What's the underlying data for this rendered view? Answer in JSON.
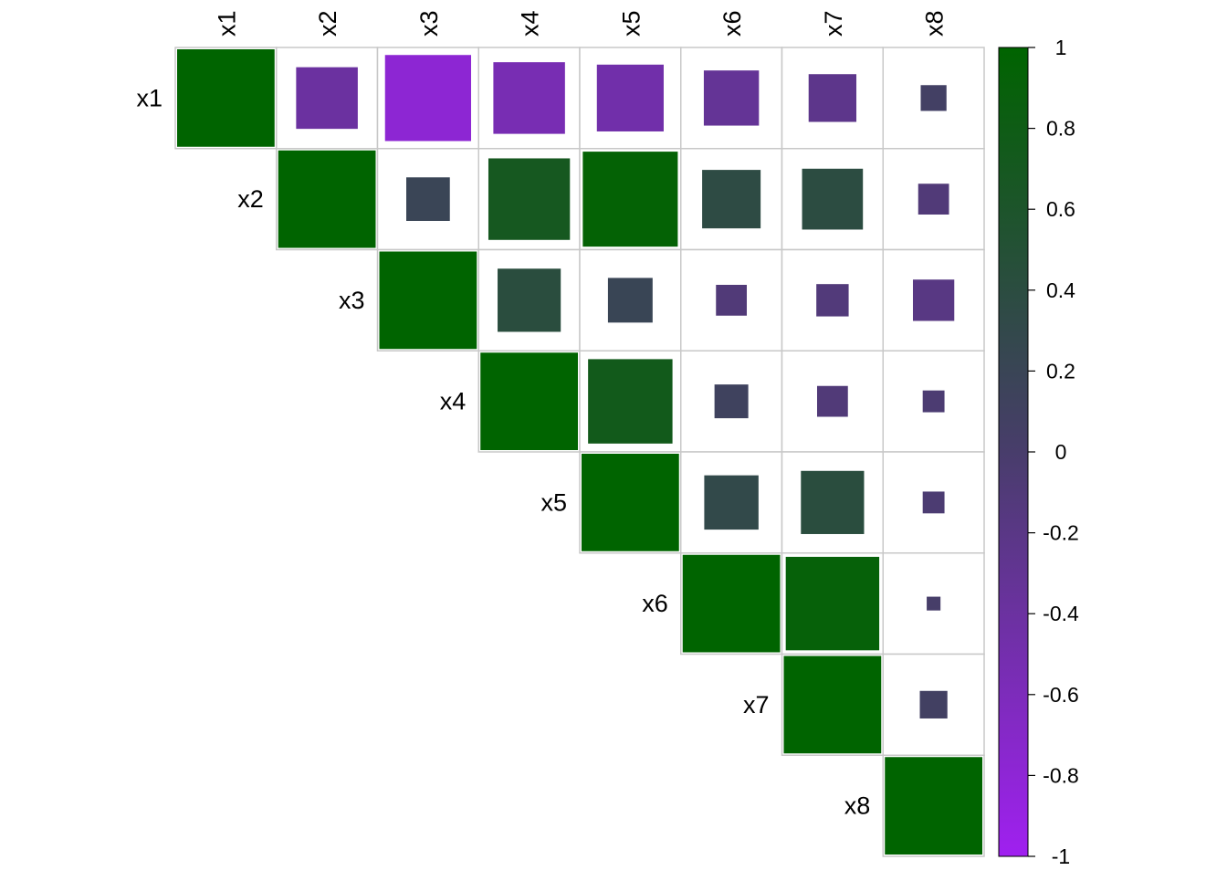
{
  "chart_data": {
    "type": "heatmap",
    "variables": [
      "x1",
      "x2",
      "x3",
      "x4",
      "x5",
      "x6",
      "x7",
      "x8"
    ],
    "layout": "upper-triangle",
    "method": "square",
    "matrix": [
      [
        1.0,
        -0.4,
        -0.78,
        -0.54,
        -0.47,
        -0.32,
        -0.24,
        0.07
      ],
      [
        -0.4,
        1.0,
        0.2,
        0.7,
        0.95,
        0.36,
        0.39,
        -0.1
      ],
      [
        -0.78,
        0.2,
        1.0,
        0.42,
        0.21,
        -0.1,
        -0.11,
        -0.18
      ],
      [
        -0.54,
        0.7,
        0.42,
        1.0,
        0.75,
        0.12,
        -0.1,
        -0.05
      ],
      [
        -0.47,
        0.95,
        0.21,
        0.75,
        1.0,
        0.31,
        0.42,
        -0.05
      ],
      [
        -0.32,
        0.36,
        -0.1,
        0.12,
        0.31,
        1.0,
        0.92,
        0.02
      ],
      [
        -0.24,
        0.39,
        -0.11,
        -0.1,
        0.42,
        0.92,
        1.0,
        0.08
      ],
      [
        0.07,
        -0.1,
        -0.18,
        -0.05,
        -0.05,
        0.02,
        0.08,
        1.0
      ]
    ],
    "colorbar": {
      "range": [
        -1,
        1
      ],
      "ticks": [
        1,
        0.8,
        0.6,
        0.4,
        0.2,
        0,
        -0.2,
        -0.4,
        -0.6,
        -0.8,
        -1
      ],
      "tick_labels": [
        "1",
        "0.8",
        "0.6",
        "0.4",
        "0.2",
        "0",
        "-0.2",
        "-0.4",
        "-0.6",
        "-0.8",
        "-1"
      ],
      "colors": {
        "negative": "#a020f0",
        "middle": "#483d6b",
        "positive": "#006400"
      }
    },
    "grid": true,
    "legend_position": "right"
  }
}
